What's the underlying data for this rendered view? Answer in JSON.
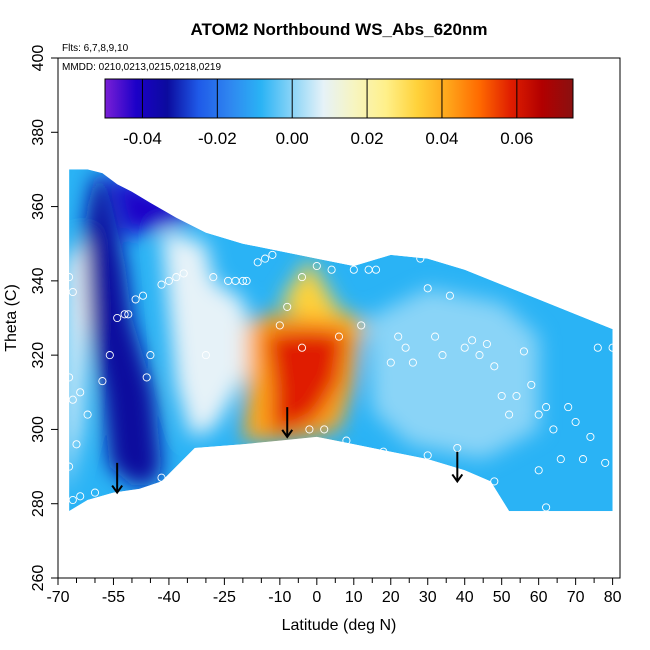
{
  "chart_data": {
    "type": "heatmap",
    "title": "ATOM2 Northbound WS_Abs_620nm",
    "flights_label": "Flts: 6,7,8,9,10",
    "dates_label": "MMDD: 0210,0213,0215,0218,0219",
    "xlabel": "Latitude (deg N)",
    "ylabel": "Theta (C)",
    "xlim": [
      -70,
      80
    ],
    "ylim": [
      260,
      400
    ],
    "x_ticks": [
      -70,
      -55,
      -40,
      -25,
      -10,
      0,
      10,
      20,
      30,
      40,
      50,
      60,
      70,
      80
    ],
    "x_minor_ticks": [
      -65,
      -60,
      -50,
      -45,
      -35,
      -30,
      -20,
      -15,
      -5,
      5,
      15,
      25,
      35,
      45,
      55,
      65,
      75
    ],
    "y_ticks": [
      260,
      280,
      300,
      320,
      340,
      360,
      380,
      400
    ],
    "colorbar": {
      "min": -0.05,
      "max": 0.075,
      "ticks": [
        -0.04,
        -0.02,
        0.0,
        0.02,
        0.04,
        0.06
      ],
      "tick_labels": [
        "-0.04",
        "-0.02",
        "0.00",
        "0.02",
        "0.04",
        "0.06"
      ],
      "colors": [
        "#7a1fd6",
        "#1c00c8",
        "#0b0b9e",
        "#1f5ae8",
        "#2f86f0",
        "#2ab3f5",
        "#8ad4f7",
        "#e6f2f8",
        "#f7f5c0",
        "#fff08a",
        "#ffd23a",
        "#ffa51a",
        "#ff6a00",
        "#e01e00",
        "#b20000",
        "#8a1010"
      ]
    },
    "top_boundary": [
      [
        -67,
        370
      ],
      [
        -62,
        370
      ],
      [
        -58,
        369
      ],
      [
        -54,
        366
      ],
      [
        -50,
        364
      ],
      [
        -45,
        361
      ],
      [
        -38,
        357
      ],
      [
        -30,
        353
      ],
      [
        -20,
        350
      ],
      [
        -10,
        348
      ],
      [
        0,
        346
      ],
      [
        10,
        344
      ],
      [
        20,
        347
      ],
      [
        30,
        346
      ],
      [
        40,
        343
      ],
      [
        50,
        339
      ],
      [
        60,
        335
      ],
      [
        70,
        331
      ],
      [
        80,
        327
      ]
    ],
    "bottom_boundary": [
      [
        -67,
        278
      ],
      [
        -62,
        281
      ],
      [
        -55,
        283
      ],
      [
        -48,
        284
      ],
      [
        -42,
        286
      ],
      [
        -33,
        295
      ],
      [
        -20,
        296
      ],
      [
        -10,
        297
      ],
      [
        0,
        298
      ],
      [
        10,
        296
      ],
      [
        20,
        294
      ],
      [
        30,
        292
      ],
      [
        40,
        289
      ],
      [
        47,
        286
      ],
      [
        52,
        278
      ],
      [
        80,
        278
      ]
    ],
    "regions": [
      {
        "name": "south-pole-core",
        "value": -0.035,
        "polygon": [
          [
            -60,
            369
          ],
          [
            -57,
            367
          ],
          [
            -52,
            345
          ],
          [
            -50,
            330
          ],
          [
            -44,
            310
          ],
          [
            -42,
            290
          ],
          [
            -44,
            285
          ],
          [
            -50,
            285
          ],
          [
            -56,
            290
          ],
          [
            -58,
            310
          ],
          [
            -64,
            340
          ],
          [
            -62,
            360
          ]
        ]
      },
      {
        "name": "south-top-band",
        "value": -0.045,
        "polygon": [
          [
            -56,
            369
          ],
          [
            -48,
            366
          ],
          [
            -35,
            361
          ],
          [
            -30,
            358
          ],
          [
            -42,
            354
          ],
          [
            -52,
            352
          ]
        ]
      },
      {
        "name": "mid-light-band",
        "value": 0.012,
        "polygon": [
          [
            -42,
            354
          ],
          [
            -30,
            350
          ],
          [
            -28,
            340
          ],
          [
            -20,
            335
          ],
          [
            -16,
            320
          ],
          [
            -28,
            300
          ],
          [
            -34,
            298
          ],
          [
            -38,
            312
          ],
          [
            -40,
            332
          ]
        ]
      },
      {
        "name": "west-edge-light",
        "value": 0.006,
        "polygon": [
          [
            -68,
            345
          ],
          [
            -63,
            352
          ],
          [
            -62,
            330
          ],
          [
            -64,
            300
          ],
          [
            -68,
            282
          ]
        ]
      },
      {
        "name": "tropical-yellow-top",
        "value": 0.03,
        "polygon": [
          [
            -10,
            334
          ],
          [
            -2,
            346
          ],
          [
            6,
            332
          ],
          [
            12,
            330
          ],
          [
            14,
            326
          ],
          [
            4,
            326
          ],
          [
            -4,
            330
          ]
        ]
      },
      {
        "name": "tropical-orange",
        "value": 0.045,
        "polygon": [
          [
            -19,
            328
          ],
          [
            -14,
            331
          ],
          [
            -10,
            331
          ],
          [
            10,
            330
          ],
          [
            12,
            326
          ],
          [
            10,
            312
          ],
          [
            6,
            300
          ],
          [
            -2,
            298
          ],
          [
            -12,
            297
          ],
          [
            -20,
            297
          ],
          [
            -19,
            310
          ]
        ]
      },
      {
        "name": "tropical-red-core",
        "value": 0.062,
        "polygon": [
          [
            -14,
            326
          ],
          [
            -2,
            327
          ],
          [
            8,
            326
          ],
          [
            6,
            313
          ],
          [
            0,
            303
          ],
          [
            -6,
            300
          ],
          [
            -12,
            299
          ],
          [
            -12,
            312
          ]
        ]
      },
      {
        "name": "north-lighter-blue",
        "value": -0.004,
        "polygon": [
          [
            14,
            330
          ],
          [
            30,
            338
          ],
          [
            50,
            334
          ],
          [
            60,
            325
          ],
          [
            60,
            300
          ],
          [
            45,
            292
          ],
          [
            25,
            296
          ],
          [
            15,
            305
          ]
        ]
      }
    ],
    "points": [
      [
        -67,
        341
      ],
      [
        -66,
        337
      ],
      [
        -67,
        314
      ],
      [
        -66,
        308
      ],
      [
        -64,
        310
      ],
      [
        -62,
        304
      ],
      [
        -65,
        296
      ],
      [
        -67,
        290
      ],
      [
        -64,
        282
      ],
      [
        -60,
        283
      ],
      [
        -58,
        313
      ],
      [
        -56,
        320
      ],
      [
        -54,
        330
      ],
      [
        -52,
        331
      ],
      [
        -51,
        331
      ],
      [
        -49,
        335
      ],
      [
        -47,
        336
      ],
      [
        -46,
        314
      ],
      [
        -45,
        320
      ],
      [
        -42,
        287
      ],
      [
        -42,
        339
      ],
      [
        -40,
        340
      ],
      [
        -38,
        341
      ],
      [
        -36,
        342
      ],
      [
        -30,
        320
      ],
      [
        -28,
        341
      ],
      [
        -24,
        340
      ],
      [
        -22,
        340
      ],
      [
        -20,
        340
      ],
      [
        -19,
        340
      ],
      [
        -16,
        345
      ],
      [
        -14,
        346
      ],
      [
        -12,
        347
      ],
      [
        -10,
        328
      ],
      [
        -8,
        333
      ],
      [
        -4,
        341
      ],
      [
        -4,
        322
      ],
      [
        -2,
        300
      ],
      [
        0,
        344
      ],
      [
        2,
        300
      ],
      [
        4,
        343
      ],
      [
        6,
        325
      ],
      [
        8,
        297
      ],
      [
        10,
        343
      ],
      [
        12,
        328
      ],
      [
        14,
        343
      ],
      [
        16,
        343
      ],
      [
        18,
        294
      ],
      [
        20,
        318
      ],
      [
        22,
        325
      ],
      [
        24,
        322
      ],
      [
        26,
        318
      ],
      [
        28,
        346
      ],
      [
        30,
        293
      ],
      [
        30,
        338
      ],
      [
        32,
        325
      ],
      [
        34,
        320
      ],
      [
        36,
        336
      ],
      [
        38,
        295
      ],
      [
        40,
        322
      ],
      [
        42,
        324
      ],
      [
        44,
        320
      ],
      [
        46,
        323
      ],
      [
        48,
        317
      ],
      [
        50,
        309
      ],
      [
        52,
        304
      ],
      [
        54,
        309
      ],
      [
        56,
        321
      ],
      [
        58,
        312
      ],
      [
        60,
        304
      ],
      [
        62,
        306
      ],
      [
        64,
        300
      ],
      [
        66,
        292
      ],
      [
        68,
        306
      ],
      [
        70,
        302
      ],
      [
        72,
        292
      ],
      [
        74,
        298
      ],
      [
        76,
        322
      ],
      [
        78,
        291
      ],
      [
        80,
        322
      ],
      [
        -66,
        281
      ],
      [
        60,
        289
      ],
      [
        62,
        279
      ],
      [
        48,
        286
      ]
    ],
    "arrows": [
      {
        "x": -54,
        "y_top": 291,
        "y_bottom": 283
      },
      {
        "x": -8,
        "y_top": 306,
        "y_bottom": 298
      },
      {
        "x": 38,
        "y_top": 294,
        "y_bottom": 286
      }
    ]
  }
}
